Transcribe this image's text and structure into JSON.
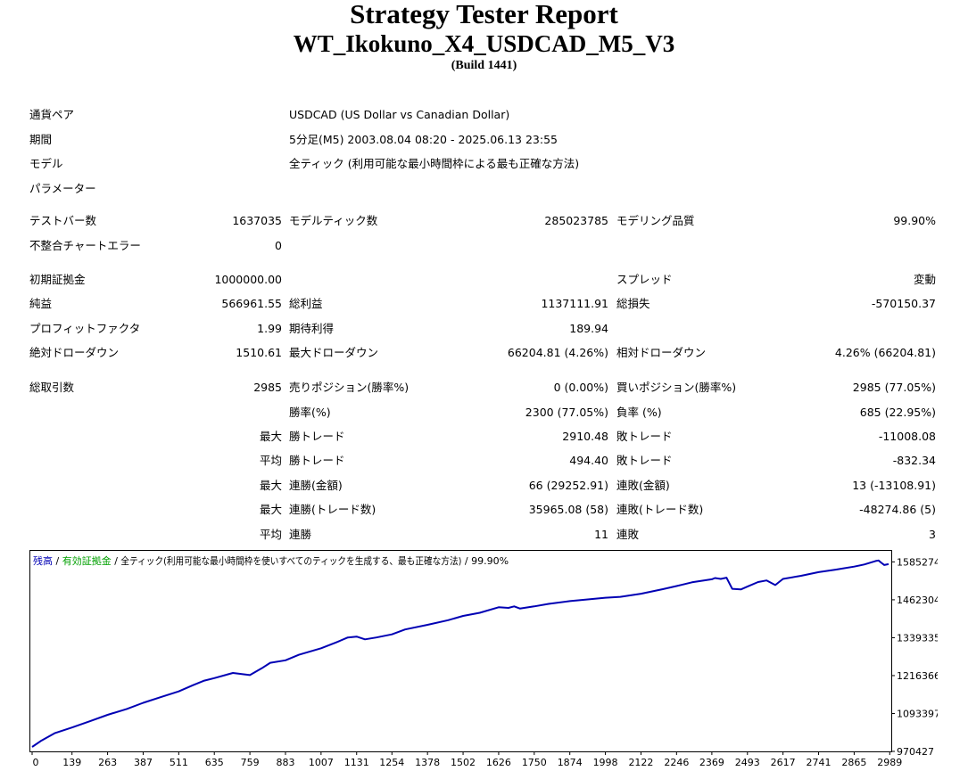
{
  "header": {
    "title": "Strategy Tester Report",
    "expert": "WT_Ikokuno_X4_USDCAD_M5_V3",
    "build": "(Build 1441)"
  },
  "info": {
    "pair_label": "通貨ペア",
    "pair_value": "USDCAD (US Dollar vs Canadian Dollar)",
    "period_label": "期間",
    "period_value": "5分足(M5) 2003.08.04 08:20 - 2025.06.13 23:55",
    "model_label": "モデル",
    "model_value": "全ティック (利用可能な最小時間枠による最も正確な方法)",
    "params_label": "パラメーター"
  },
  "test": {
    "bars_label": "テストバー数",
    "bars_value": "1637035",
    "ticks_label": "モデルティック数",
    "ticks_value": "285023785",
    "quality_label": "モデリング品質",
    "quality_value": "99.90%",
    "errors_label": "不整合チャートエラー",
    "errors_value": "0"
  },
  "results": {
    "deposit_label": "初期証拠金",
    "deposit_value": "1000000.00",
    "spread_label": "スプレッド",
    "spread_value": "変動",
    "net_label": "純益",
    "net_value": "566961.55",
    "gross_profit_label": "総利益",
    "gross_profit_value": "1137111.91",
    "gross_loss_label": "総損失",
    "gross_loss_value": "-570150.37",
    "pf_label": "プロフィットファクタ",
    "pf_value": "1.99",
    "payoff_label": "期待利得",
    "payoff_value": "189.94",
    "abs_dd_label": "絶対ドローダウン",
    "abs_dd_value": "1510.61",
    "max_dd_label": "最大ドローダウン",
    "max_dd_value": "66204.81 (4.26%)",
    "rel_dd_label": "相対ドローダウン",
    "rel_dd_value": "4.26% (66204.81)"
  },
  "trades": {
    "total_label": "総取引数",
    "total_value": "2985",
    "short_label": "売りポジション(勝率%)",
    "short_value": "0 (0.00%)",
    "long_label": "買いポジション(勝率%)",
    "long_value": "2985 (77.05%)",
    "win_label": "勝率(%)",
    "win_value": "2300 (77.05%)",
    "loss_label": "負率 (%)",
    "loss_value": "685 (22.95%)",
    "max": "最大",
    "avg": "平均",
    "largest_win_label": "勝トレード",
    "largest_win_value": "2910.48",
    "largest_loss_label": "敗トレード",
    "largest_loss_value": "-11008.08",
    "avg_win_label": "勝トレード",
    "avg_win_value": "494.40",
    "avg_loss_label": "敗トレード",
    "avg_loss_value": "-832.34",
    "consec_wins_money_label": "連勝(金額)",
    "consec_wins_money_value": "66 (29252.91)",
    "consec_losses_money_label": "連敗(金額)",
    "consec_losses_money_value": "13 (-13108.91)",
    "consec_wins_count_label": "連勝(トレード数)",
    "consec_wins_count_value": "35965.08 (58)",
    "consec_losses_count_label": "連敗(トレード数)",
    "consec_losses_count_value": "-48274.86 (5)",
    "avg_consec_wins_label": "連勝",
    "avg_consec_wins_value": "11",
    "avg_consec_losses_label": "連敗",
    "avg_consec_losses_value": "3"
  },
  "chart_data": {
    "type": "line",
    "legend": {
      "balance": "残高",
      "sep1": " / ",
      "equity": "有効証拠金",
      "sep2": " / ",
      "model": "全ティック(利用可能な最小時間枠を使いすべてのティックを生成する、最も正確な方法)",
      "sep3": " / ",
      "quality": "99.90%"
    },
    "colors": {
      "balance": "#0000b4",
      "equity": "#00a000",
      "border": "#000000"
    },
    "x_ticks": [
      0,
      139,
      263,
      387,
      511,
      635,
      759,
      883,
      1007,
      1131,
      1254,
      1378,
      1502,
      1626,
      1750,
      1874,
      1998,
      2122,
      2246,
      2369,
      2493,
      2617,
      2741,
      2865,
      2989
    ],
    "y_ticks": [
      970427,
      1093397,
      1216366,
      1339335,
      1462304,
      1585274
    ],
    "xlim": [
      0,
      2985
    ],
    "ylim": [
      970427,
      1624000
    ],
    "series": [
      {
        "x": [
          0,
          30,
          80,
          139,
          200,
          263,
          330,
          387,
          450,
          511,
          560,
          600,
          635,
          700,
          759,
          800,
          830,
          883,
          930,
          1007,
          1060,
          1100,
          1131,
          1160,
          1200,
          1254,
          1300,
          1378,
          1450,
          1502,
          1560,
          1626,
          1660,
          1680,
          1700,
          1750,
          1800,
          1874,
          1920,
          1998,
          2050,
          2122,
          2200,
          2246,
          2300,
          2369,
          2380,
          2400,
          2420,
          2440,
          2470,
          2493,
          2530,
          2560,
          2590,
          2617,
          2680,
          2741,
          2800,
          2865,
          2900,
          2940,
          2950,
          2960,
          2970,
          2985
        ],
        "y": [
          985000,
          1004000,
          1030000,
          1048000,
          1068000,
          1089000,
          1108000,
          1128000,
          1147000,
          1165000,
          1185000,
          1200000,
          1208000,
          1225000,
          1218000,
          1240000,
          1258000,
          1266000,
          1284000,
          1305000,
          1324000,
          1340000,
          1343000,
          1334000,
          1340000,
          1350000,
          1366000,
          1381000,
          1396000,
          1410000,
          1420000,
          1438000,
          1436000,
          1441000,
          1434000,
          1441000,
          1449000,
          1458000,
          1462000,
          1469000,
          1472000,
          1482000,
          1497000,
          1507000,
          1519000,
          1529000,
          1533000,
          1530000,
          1534000,
          1498000,
          1496000,
          1505000,
          1520000,
          1525000,
          1510000,
          1530000,
          1540000,
          1552000,
          1560000,
          1570000,
          1577000,
          1588000,
          1590000,
          1582000,
          1575000,
          1578000
        ]
      }
    ]
  }
}
